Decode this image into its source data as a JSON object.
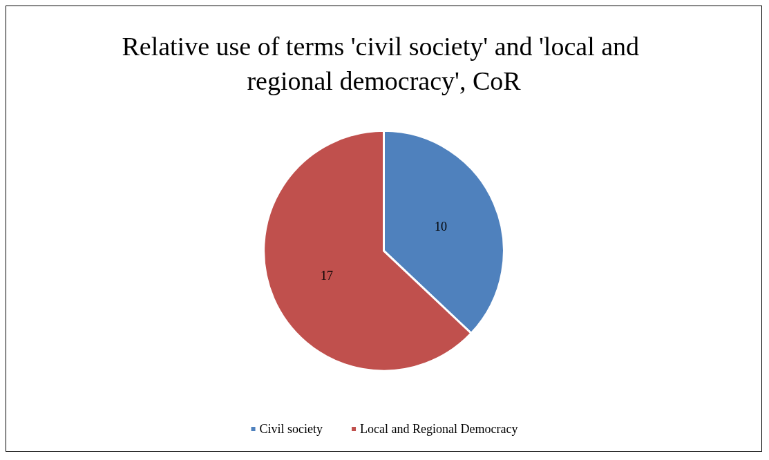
{
  "chart_data": {
    "type": "pie",
    "title": "Relative use of terms 'civil society' and 'local and regional democracy', CoR",
    "categories": [
      "Civil society",
      "Local and Regional Democracy"
    ],
    "values": [
      10,
      17
    ],
    "colors": [
      "#4f81bd",
      "#c0504d"
    ],
    "data_labels": true,
    "legend": "bottom"
  }
}
